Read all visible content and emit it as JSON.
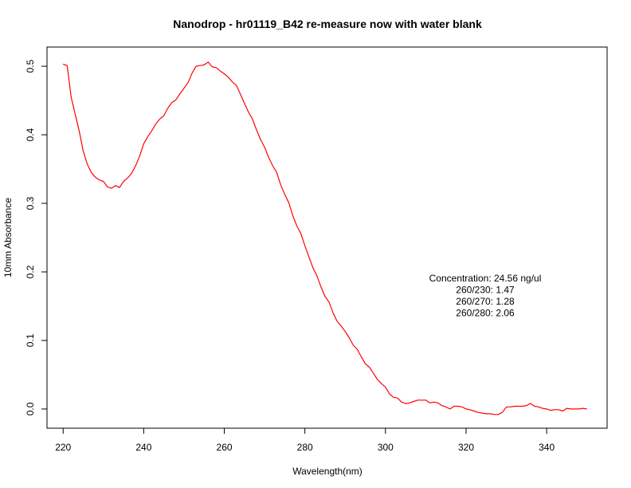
{
  "chart_data": {
    "type": "line",
    "title": "Nanodrop - hr01119_B42 re-measure now with water blank",
    "xlabel": "Wavelength(nm)",
    "ylabel": "10mm Absorbance",
    "xlim": [
      216,
      355
    ],
    "ylim": [
      -0.028,
      0.528
    ],
    "xticks": [
      "220",
      "240",
      "260",
      "280",
      "300",
      "320",
      "340"
    ],
    "yticks": [
      "0.0",
      "0.1",
      "0.2",
      "0.3",
      "0.4",
      "0.5"
    ],
    "grid": false,
    "series": [
      {
        "color": "#ff0000",
        "x": [
          220,
          221,
          222,
          223,
          224,
          225,
          226,
          227,
          228,
          229,
          230,
          231,
          232,
          233,
          234,
          235,
          236,
          237,
          238,
          239,
          240,
          241,
          242,
          243,
          244,
          245,
          246,
          247,
          248,
          249,
          250,
          251,
          252,
          253,
          254,
          255,
          256,
          257,
          258,
          259,
          260,
          261,
          262,
          263,
          264,
          265,
          266,
          267,
          268,
          269,
          270,
          271,
          272,
          273,
          274,
          275,
          276,
          277,
          278,
          279,
          280,
          281,
          282,
          283,
          284,
          285,
          286,
          287,
          288,
          289,
          290,
          291,
          292,
          293,
          294,
          295,
          296,
          297,
          298,
          299,
          300,
          301,
          302,
          303,
          304,
          305,
          306,
          307,
          308,
          309,
          310,
          311,
          312,
          313,
          314,
          315,
          316,
          317,
          318,
          319,
          320,
          321,
          322,
          323,
          324,
          325,
          326,
          327,
          328,
          329,
          330,
          331,
          332,
          333,
          334,
          335,
          336,
          337,
          338,
          339,
          340,
          341,
          342,
          343,
          344,
          345,
          346,
          347,
          348,
          349,
          350
        ],
        "y": [
          0.503,
          0.501,
          0.455,
          0.43,
          0.405,
          0.376,
          0.357,
          0.345,
          0.338,
          0.334,
          0.332,
          0.324,
          0.322,
          0.326,
          0.323,
          0.332,
          0.337,
          0.344,
          0.355,
          0.369,
          0.387,
          0.397,
          0.406,
          0.416,
          0.423,
          0.428,
          0.439,
          0.447,
          0.451,
          0.46,
          0.468,
          0.476,
          0.49,
          0.5,
          0.501,
          0.502,
          0.506,
          0.499,
          0.498,
          0.493,
          0.489,
          0.484,
          0.477,
          0.472,
          0.459,
          0.446,
          0.433,
          0.423,
          0.407,
          0.393,
          0.382,
          0.367,
          0.355,
          0.345,
          0.327,
          0.313,
          0.301,
          0.282,
          0.267,
          0.256,
          0.238,
          0.222,
          0.206,
          0.194,
          0.178,
          0.164,
          0.156,
          0.14,
          0.128,
          0.121,
          0.113,
          0.104,
          0.093,
          0.087,
          0.076,
          0.066,
          0.061,
          0.052,
          0.043,
          0.037,
          0.032,
          0.022,
          0.017,
          0.016,
          0.01,
          0.008,
          0.009,
          0.011,
          0.013,
          0.013,
          0.013,
          0.009,
          0.01,
          0.009,
          0.005,
          0.003,
          0.0,
          0.004,
          0.004,
          0.003,
          0.0,
          -0.001,
          -0.003,
          -0.005,
          -0.006,
          -0.007,
          -0.007,
          -0.008,
          -0.008,
          -0.005,
          0.003,
          0.003,
          0.004,
          0.004,
          0.004,
          0.005,
          0.008,
          0.004,
          0.003,
          0.001,
          0.0,
          -0.002,
          -0.001,
          -0.001,
          -0.003,
          0.001,
          0.0,
          0.0,
          0.0,
          0.001,
          0.0
        ]
      }
    ],
    "annotations": [
      "Concentration: 24.56 ng/ul",
      "260/230: 1.47",
      "260/270: 1.28",
      "260/280: 2.06"
    ]
  }
}
